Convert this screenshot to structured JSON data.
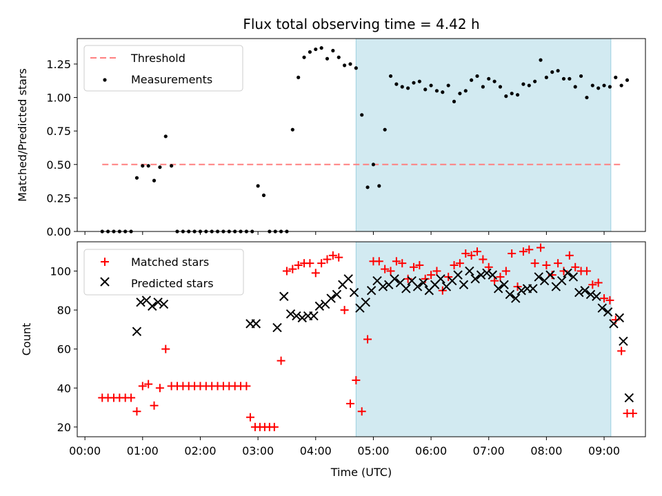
{
  "chart_data": [
    {
      "type": "scatter",
      "title": "Flux total observing time = 4.42 h",
      "xlabel": "",
      "ylabel": "Matched/Predicted stars",
      "xlim": [
        "23:52",
        "09:43"
      ],
      "ylim": [
        0,
        1.44
      ],
      "yticks": [
        "0.00",
        "0.25",
        "0.50",
        "0.75",
        "1.00",
        "1.25"
      ],
      "shaded_interval": [
        "04:42",
        "09:07"
      ],
      "grid": false,
      "legend_position": "top-left",
      "legend": [
        "Threshold",
        "Measurements"
      ],
      "threshold": {
        "name": "Threshold",
        "value": 0.5,
        "x_range": [
          "00:18",
          "09:18"
        ],
        "color": "#ff7f7f"
      },
      "series": [
        {
          "name": "Measurements",
          "color": "#000000",
          "points": [
            [
              "00:18",
              0
            ],
            [
              "00:24",
              0
            ],
            [
              "00:30",
              0
            ],
            [
              "00:36",
              0
            ],
            [
              "00:42",
              0
            ],
            [
              "00:48",
              0
            ],
            [
              "00:54",
              0.4
            ],
            [
              "01:00",
              0.49
            ],
            [
              "01:06",
              0.49
            ],
            [
              "01:12",
              0.38
            ],
            [
              "01:18",
              0.48
            ],
            [
              "01:24",
              0.71
            ],
            [
              "01:30",
              0.49
            ],
            [
              "01:36",
              0
            ],
            [
              "01:42",
              0
            ],
            [
              "01:48",
              0
            ],
            [
              "01:54",
              0
            ],
            [
              "02:00",
              0
            ],
            [
              "02:06",
              0
            ],
            [
              "02:12",
              0
            ],
            [
              "02:18",
              0
            ],
            [
              "02:24",
              0
            ],
            [
              "02:30",
              0
            ],
            [
              "02:36",
              0
            ],
            [
              "02:42",
              0
            ],
            [
              "02:48",
              0
            ],
            [
              "02:54",
              0
            ],
            [
              "03:00",
              0.34
            ],
            [
              "03:06",
              0.27
            ],
            [
              "03:12",
              0
            ],
            [
              "03:18",
              0
            ],
            [
              "03:24",
              0
            ],
            [
              "03:30",
              0
            ],
            [
              "03:36",
              0.76
            ],
            [
              "03:42",
              1.15
            ],
            [
              "03:48",
              1.3
            ],
            [
              "03:54",
              1.34
            ],
            [
              "04:00",
              1.36
            ],
            [
              "04:06",
              1.37
            ],
            [
              "04:12",
              1.29
            ],
            [
              "04:18",
              1.35
            ],
            [
              "04:24",
              1.3
            ],
            [
              "04:30",
              1.24
            ],
            [
              "04:36",
              1.25
            ],
            [
              "04:42",
              1.22
            ],
            [
              "04:48",
              0.87
            ],
            [
              "04:54",
              0.33
            ],
            [
              "05:00",
              0.5
            ],
            [
              "05:06",
              0.34
            ],
            [
              "05:12",
              0.76
            ],
            [
              "05:18",
              1.16
            ],
            [
              "05:24",
              1.1
            ],
            [
              "05:30",
              1.08
            ],
            [
              "05:36",
              1.07
            ],
            [
              "05:42",
              1.11
            ],
            [
              "05:48",
              1.12
            ],
            [
              "05:54",
              1.06
            ],
            [
              "06:00",
              1.09
            ],
            [
              "06:06",
              1.05
            ],
            [
              "06:12",
              1.04
            ],
            [
              "06:18",
              1.09
            ],
            [
              "06:24",
              0.97
            ],
            [
              "06:30",
              1.03
            ],
            [
              "06:36",
              1.05
            ],
            [
              "06:42",
              1.13
            ],
            [
              "06:48",
              1.16
            ],
            [
              "06:54",
              1.08
            ],
            [
              "07:00",
              1.14
            ],
            [
              "07:06",
              1.12
            ],
            [
              "07:12",
              1.08
            ],
            [
              "07:18",
              1.01
            ],
            [
              "07:24",
              1.03
            ],
            [
              "07:30",
              1.02
            ],
            [
              "07:36",
              1.1
            ],
            [
              "07:42",
              1.09
            ],
            [
              "07:48",
              1.12
            ],
            [
              "07:54",
              1.28
            ],
            [
              "08:00",
              1.15
            ],
            [
              "08:06",
              1.19
            ],
            [
              "08:12",
              1.2
            ],
            [
              "08:18",
              1.14
            ],
            [
              "08:24",
              1.14
            ],
            [
              "08:30",
              1.08
            ],
            [
              "08:36",
              1.16
            ],
            [
              "08:42",
              1.0
            ],
            [
              "08:48",
              1.09
            ],
            [
              "08:54",
              1.07
            ],
            [
              "09:00",
              1.09
            ],
            [
              "09:06",
              1.08
            ],
            [
              "09:12",
              1.15
            ],
            [
              "09:18",
              1.09
            ],
            [
              "09:24",
              1.13
            ]
          ]
        }
      ]
    },
    {
      "type": "scatter",
      "title": "",
      "xlabel": "Time (UTC)",
      "ylabel": "Count",
      "xlim": [
        "23:52",
        "09:43"
      ],
      "ylim": [
        15,
        115
      ],
      "xticks": [
        "00:00",
        "01:00",
        "02:00",
        "03:00",
        "04:00",
        "05:00",
        "06:00",
        "07:00",
        "08:00",
        "09:00"
      ],
      "yticks": [
        "20",
        "40",
        "60",
        "80",
        "100"
      ],
      "shaded_interval": [
        "04:42",
        "09:07"
      ],
      "grid": false,
      "legend_position": "top-left",
      "legend": [
        "Matched stars",
        "Predicted stars"
      ],
      "series": [
        {
          "name": "Matched stars",
          "marker": "+",
          "color": "#ff0000",
          "points": [
            [
              "00:18",
              35
            ],
            [
              "00:24",
              35
            ],
            [
              "00:30",
              35
            ],
            [
              "00:36",
              35
            ],
            [
              "00:42",
              35
            ],
            [
              "00:48",
              35
            ],
            [
              "00:54",
              28
            ],
            [
              "01:00",
              41
            ],
            [
              "01:06",
              42
            ],
            [
              "01:12",
              31
            ],
            [
              "01:18",
              40
            ],
            [
              "01:24",
              60
            ],
            [
              "01:30",
              41
            ],
            [
              "01:36",
              41
            ],
            [
              "01:42",
              41
            ],
            [
              "01:48",
              41
            ],
            [
              "01:54",
              41
            ],
            [
              "02:00",
              41
            ],
            [
              "02:06",
              41
            ],
            [
              "02:12",
              41
            ],
            [
              "02:18",
              41
            ],
            [
              "02:24",
              41
            ],
            [
              "02:30",
              41
            ],
            [
              "02:36",
              41
            ],
            [
              "02:42",
              41
            ],
            [
              "02:48",
              41
            ],
            [
              "02:52",
              25
            ],
            [
              "02:57",
              20
            ],
            [
              "03:02",
              20
            ],
            [
              "03:07",
              20
            ],
            [
              "03:12",
              20
            ],
            [
              "03:17",
              20
            ],
            [
              "03:24",
              54
            ],
            [
              "03:30",
              100
            ],
            [
              "03:36",
              101
            ],
            [
              "03:42",
              103
            ],
            [
              "03:48",
              104
            ],
            [
              "03:54",
              104
            ],
            [
              "04:00",
              99
            ],
            [
              "04:06",
              104
            ],
            [
              "04:12",
              106
            ],
            [
              "04:18",
              108
            ],
            [
              "04:24",
              107
            ],
            [
              "04:30",
              80
            ],
            [
              "04:36",
              32
            ],
            [
              "04:42",
              44
            ],
            [
              "04:48",
              28
            ],
            [
              "04:54",
              65
            ],
            [
              "05:00",
              105
            ],
            [
              "05:06",
              105
            ],
            [
              "05:12",
              101
            ],
            [
              "05:18",
              100
            ],
            [
              "05:24",
              105
            ],
            [
              "05:30",
              104
            ],
            [
              "05:36",
              96
            ],
            [
              "05:42",
              102
            ],
            [
              "05:48",
              103
            ],
            [
              "05:54",
              96
            ],
            [
              "06:00",
              98
            ],
            [
              "06:06",
              100
            ],
            [
              "06:12",
              90
            ],
            [
              "06:18",
              97
            ],
            [
              "06:24",
              103
            ],
            [
              "06:30",
              104
            ],
            [
              "06:36",
              109
            ],
            [
              "06:42",
              108
            ],
            [
              "06:48",
              110
            ],
            [
              "06:54",
              106
            ],
            [
              "07:00",
              102
            ],
            [
              "07:06",
              95
            ],
            [
              "07:12",
              97
            ],
            [
              "07:18",
              100
            ],
            [
              "07:24",
              109
            ],
            [
              "07:30",
              92
            ],
            [
              "07:36",
              110
            ],
            [
              "07:42",
              111
            ],
            [
              "07:48",
              104
            ],
            [
              "07:54",
              112
            ],
            [
              "08:00",
              103
            ],
            [
              "08:06",
              98
            ],
            [
              "08:12",
              104
            ],
            [
              "08:18",
              100
            ],
            [
              "08:24",
              108
            ],
            [
              "08:30",
              102
            ],
            [
              "08:36",
              100
            ],
            [
              "08:42",
              100
            ],
            [
              "08:48",
              93
            ],
            [
              "08:54",
              94
            ],
            [
              "09:00",
              86
            ],
            [
              "09:06",
              85
            ],
            [
              "09:12",
              75
            ],
            [
              "09:18",
              59
            ],
            [
              "09:24",
              27
            ],
            [
              "09:30",
              27
            ]
          ]
        },
        {
          "name": "Predicted stars",
          "marker": "x",
          "color": "#000000",
          "points": [
            [
              "00:54",
              69
            ],
            [
              "00:58",
              84
            ],
            [
              "01:04",
              85
            ],
            [
              "01:10",
              82
            ],
            [
              "01:16",
              84
            ],
            [
              "01:22",
              83
            ],
            [
              "02:52",
              73
            ],
            [
              "02:58",
              73
            ],
            [
              "03:20",
              71
            ],
            [
              "03:27",
              87
            ],
            [
              "03:34",
              78
            ],
            [
              "03:40",
              77
            ],
            [
              "03:46",
              76
            ],
            [
              "03:52",
              77
            ],
            [
              "03:58",
              77
            ],
            [
              "04:04",
              82
            ],
            [
              "04:10",
              83
            ],
            [
              "04:16",
              86
            ],
            [
              "04:22",
              88
            ],
            [
              "04:28",
              93
            ],
            [
              "04:34",
              96
            ],
            [
              "04:40",
              89
            ],
            [
              "04:46",
              81
            ],
            [
              "04:52",
              84
            ],
            [
              "04:58",
              90
            ],
            [
              "05:04",
              95
            ],
            [
              "05:10",
              92
            ],
            [
              "05:16",
              93
            ],
            [
              "05:22",
              96
            ],
            [
              "05:28",
              94
            ],
            [
              "05:34",
              91
            ],
            [
              "05:40",
              95
            ],
            [
              "05:46",
              92
            ],
            [
              "05:52",
              94
            ],
            [
              "05:58",
              90
            ],
            [
              "06:04",
              93
            ],
            [
              "06:10",
              96
            ],
            [
              "06:16",
              92
            ],
            [
              "06:22",
              95
            ],
            [
              "06:28",
              98
            ],
            [
              "06:34",
              93
            ],
            [
              "06:40",
              100
            ],
            [
              "06:46",
              96
            ],
            [
              "06:52",
              98
            ],
            [
              "06:58",
              99
            ],
            [
              "07:04",
              98
            ],
            [
              "07:10",
              91
            ],
            [
              "07:16",
              93
            ],
            [
              "07:22",
              88
            ],
            [
              "07:28",
              86
            ],
            [
              "07:34",
              90
            ],
            [
              "07:40",
              91
            ],
            [
              "07:46",
              91
            ],
            [
              "07:52",
              97
            ],
            [
              "07:58",
              95
            ],
            [
              "08:04",
              98
            ],
            [
              "08:10",
              92
            ],
            [
              "08:16",
              95
            ],
            [
              "08:22",
              99
            ],
            [
              "08:28",
              97
            ],
            [
              "08:34",
              89
            ],
            [
              "08:40",
              90
            ],
            [
              "08:46",
              88
            ],
            [
              "08:52",
              87
            ],
            [
              "08:58",
              81
            ],
            [
              "09:04",
              79
            ],
            [
              "09:10",
              73
            ],
            [
              "09:16",
              76
            ],
            [
              "09:20",
              64
            ],
            [
              "09:26",
              35
            ]
          ]
        }
      ]
    }
  ]
}
